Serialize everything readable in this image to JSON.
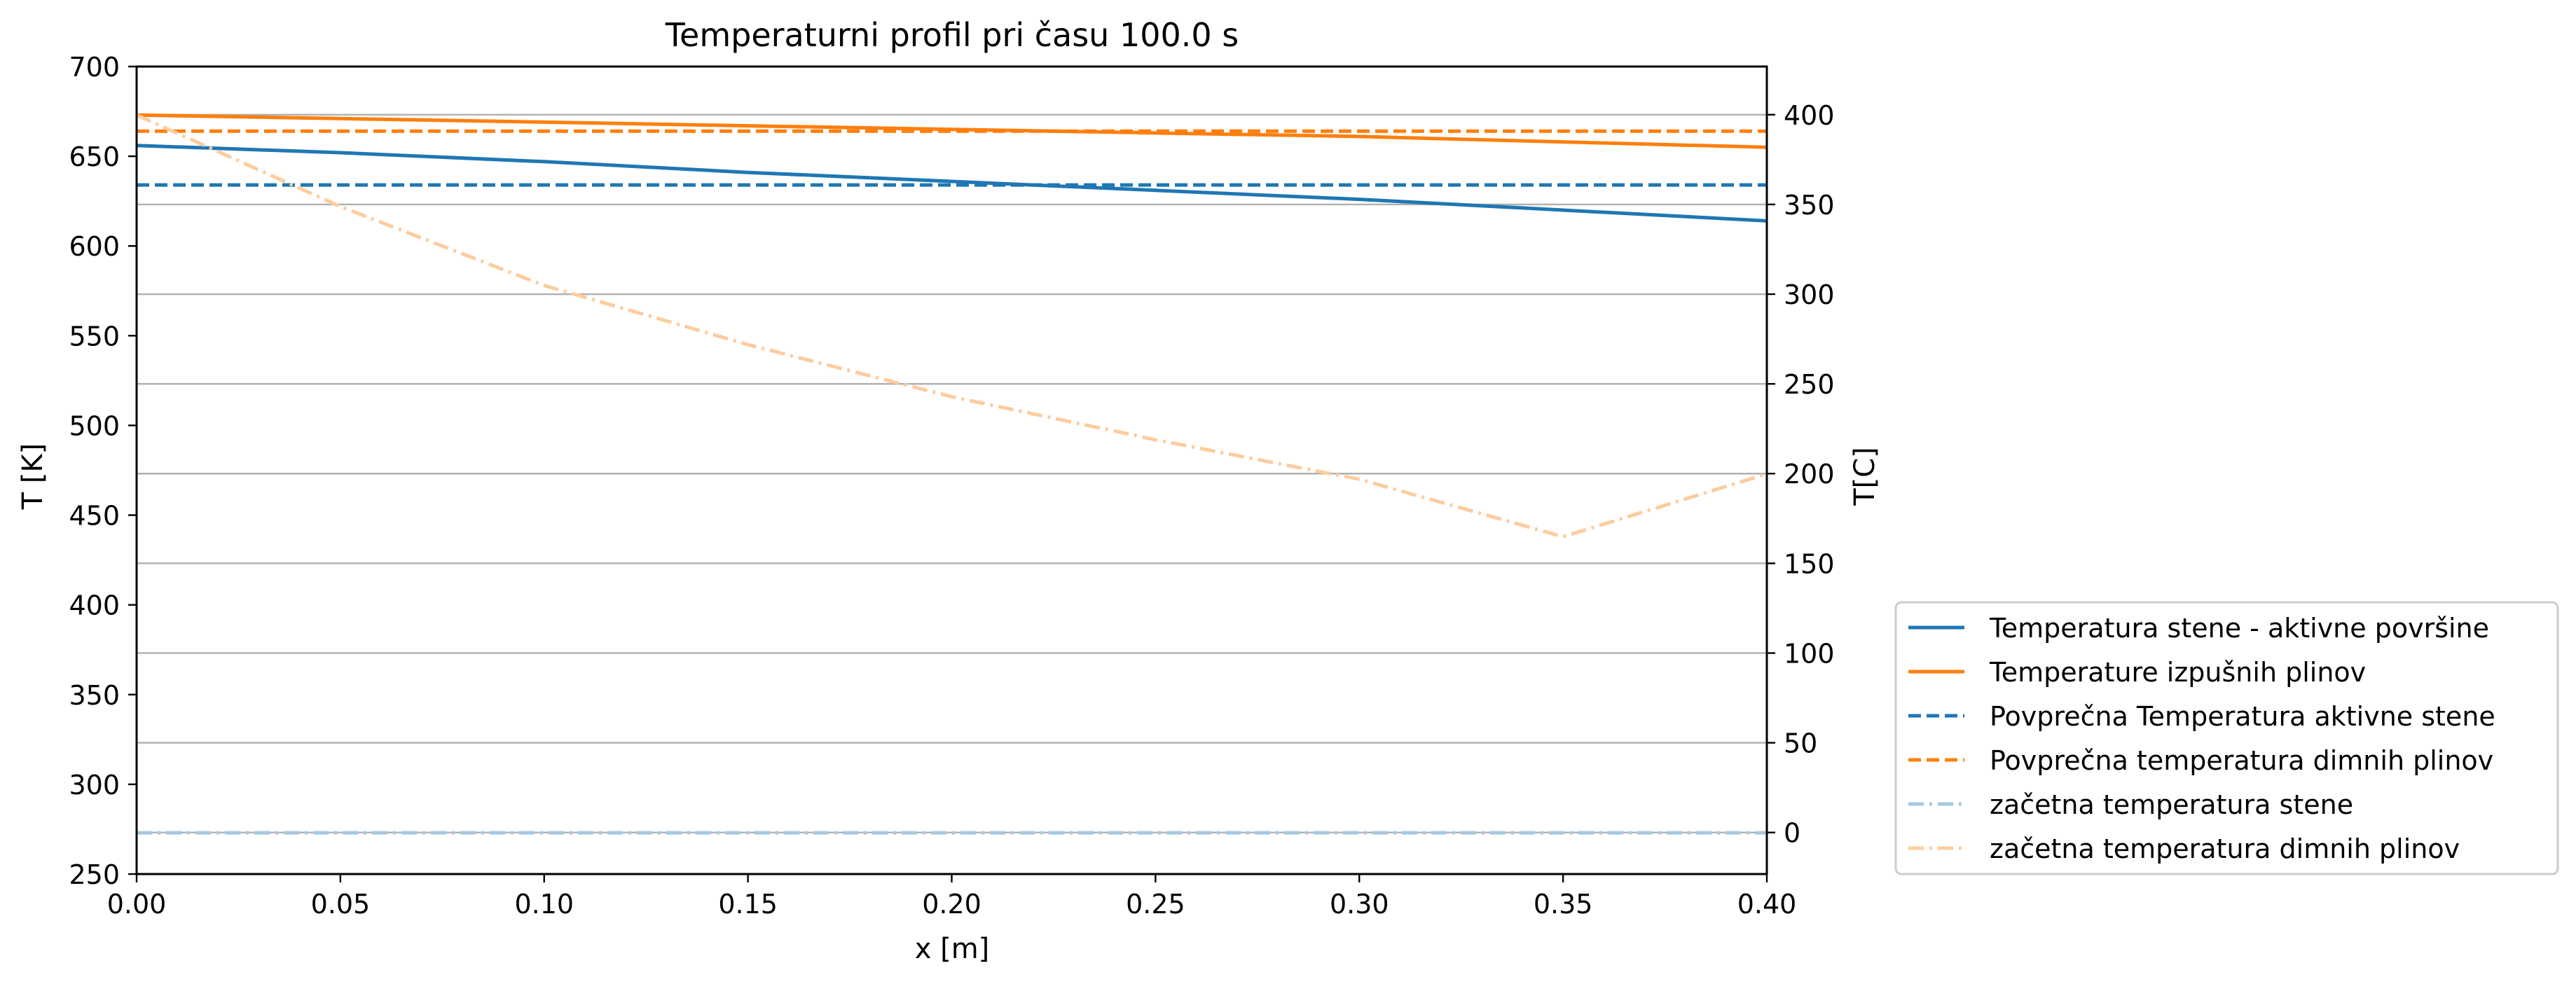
{
  "chart_data": {
    "type": "line",
    "title": "Temperaturni profil pri času 100.0 s",
    "xlabel": "x [m]",
    "ylabel": "T [K]",
    "y2label": "T[C]",
    "xlim": [
      0.0,
      0.4
    ],
    "ylim": [
      250,
      700
    ],
    "y2lim": [
      -23.15,
      426.85
    ],
    "xticks": [
      "0.00",
      "0.05",
      "0.10",
      "0.15",
      "0.20",
      "0.25",
      "0.30",
      "0.35",
      "0.40"
    ],
    "yticks": [
      "250",
      "300",
      "350",
      "400",
      "450",
      "500",
      "550",
      "600",
      "650",
      "700"
    ],
    "y2ticks": [
      "0",
      "50",
      "100",
      "150",
      "200",
      "250",
      "300",
      "350",
      "400"
    ],
    "grid": "horizontal lines at right-axis ticks",
    "legend_position": "outside-right-bottom",
    "series": [
      {
        "name": "Temperatura stene - aktivne površine",
        "color": "#1f77b4",
        "style": "solid",
        "x": [
          0.0,
          0.05,
          0.1,
          0.15,
          0.2,
          0.25,
          0.3,
          0.35,
          0.4
        ],
        "y": [
          656,
          652,
          647,
          641,
          636,
          631,
          626,
          620,
          614
        ]
      },
      {
        "name": "Temperature izpušnih plinov",
        "color": "#ff7f0e",
        "style": "solid",
        "x": [
          0.0,
          0.05,
          0.1,
          0.15,
          0.2,
          0.25,
          0.3,
          0.35,
          0.4
        ],
        "y": [
          673,
          671,
          669,
          667,
          665,
          663,
          661,
          658,
          655
        ]
      },
      {
        "name": "Povprečna Temperatura aktivne stene",
        "color": "#1f77b4",
        "style": "dashed",
        "x": [
          0.0,
          0.4
        ],
        "y": [
          634,
          634
        ]
      },
      {
        "name": "Povprečna temperatura dimnih plinov",
        "color": "#ff7f0e",
        "style": "dashed",
        "x": [
          0.0,
          0.4
        ],
        "y": [
          664,
          664
        ]
      },
      {
        "name": "začetna temperatura stene",
        "color": "#a6c8e1",
        "style": "dashdot",
        "x": [
          0.0,
          0.4
        ],
        "y": [
          273,
          273
        ]
      },
      {
        "name": "začetna temperatura dimnih plinov",
        "color": "#fdcc9e",
        "style": "dashdot",
        "x": [
          0.0,
          0.05,
          0.1,
          0.15,
          0.2,
          0.25,
          0.3,
          0.35,
          0.4
        ],
        "y": [
          673,
          622,
          578,
          545,
          516,
          492,
          470,
          438,
          473
        ]
      }
    ]
  }
}
